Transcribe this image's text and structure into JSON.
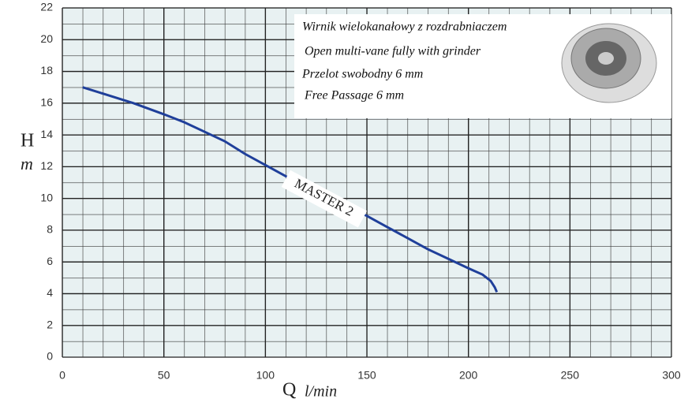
{
  "chart_data": {
    "type": "line",
    "x_label": "Q",
    "x_unit": "l/min",
    "y_label": "H",
    "y_unit": "m",
    "annotations": [
      "Wirnik wielokanałowy z rozdrabniaczem",
      "Open multi-vane fully with grinder",
      "Przelot swobodny 6 mm",
      "Free Passage 6 mm"
    ],
    "x": [
      10,
      20,
      35,
      50,
      60,
      70,
      80,
      90,
      100,
      110,
      120,
      130,
      140,
      150,
      160,
      170,
      180,
      190,
      200,
      207,
      211,
      213,
      214
    ],
    "series": [
      {
        "name": "MASTER 2",
        "color": "#1f3f9a",
        "values": [
          17,
          16.6,
          16,
          15.3,
          14.8,
          14.2,
          13.6,
          12.8,
          12.1,
          11.4,
          10.8,
          10.1,
          9.5,
          8.9,
          8.2,
          7.5,
          6.8,
          6.2,
          5.6,
          5.2,
          4.8,
          4.4,
          4.1
        ]
      }
    ],
    "xlim": [
      0,
      300
    ],
    "xticks": [
      0,
      50,
      100,
      150,
      200,
      250,
      300
    ],
    "ylim": [
      0,
      22
    ],
    "yticks": [
      0,
      2,
      4,
      6,
      8,
      10,
      12,
      14,
      16,
      18,
      20,
      22
    ],
    "grid": true
  }
}
